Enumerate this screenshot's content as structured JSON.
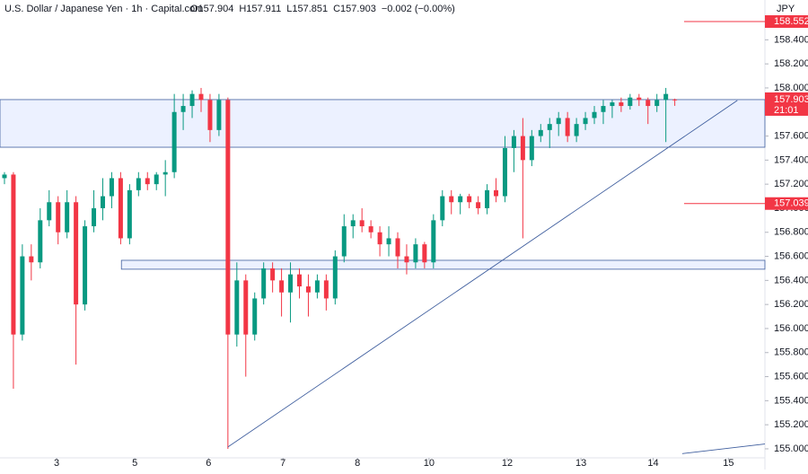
{
  "header": {
    "instrument": "U.S. Dollar / Japanese Yen · 1h · Capital.com",
    "quote": [
      "O157.904",
      "H157.911",
      "L157.851",
      "C157.903",
      "−0.002 (−0.00%)"
    ]
  },
  "chart_data": {
    "type": "candlestick",
    "currency": "JPY",
    "x": [
      -0.7,
      -0.58,
      -0.46,
      -0.34,
      -0.22,
      -0.1,
      0.02,
      0.14,
      0.26,
      0.38,
      0.5,
      0.62,
      0.74,
      0.86,
      0.98,
      1.1,
      1.22,
      1.34,
      1.46,
      1.58,
      1.7,
      1.82,
      1.94,
      2.06,
      2.18,
      2.3,
      2.42,
      2.54,
      2.66,
      2.78,
      2.9,
      3.02,
      3.14,
      3.26,
      3.38,
      3.5,
      3.62,
      3.74,
      3.86,
      3.98,
      4.1,
      4.22,
      4.34,
      4.46,
      4.58,
      4.7,
      4.82,
      4.94,
      5.06,
      5.18,
      5.3,
      5.42,
      5.54,
      5.66,
      5.78,
      5.9,
      6.02,
      6.14,
      6.26,
      6.38,
      6.5,
      6.62,
      6.74,
      6.86,
      6.98,
      7.1,
      7.22,
      7.34,
      7.46,
      7.58,
      7.7,
      7.82,
      7.94,
      8.06,
      8.18,
      8.3
    ],
    "open": [
      157.25,
      157.28,
      155.95,
      156.6,
      156.55,
      156.9,
      157.05,
      156.8,
      157.05,
      156.2,
      156.85,
      157.0,
      157.1,
      157.25,
      156.75,
      157.15,
      157.25,
      157.2,
      157.28,
      157.3,
      157.8,
      157.85,
      157.95,
      157.9,
      157.65,
      157.9,
      155.95,
      156.4,
      155.95,
      156.25,
      156.5,
      156.4,
      156.3,
      156.45,
      156.35,
      156.3,
      156.4,
      156.25,
      156.6,
      156.85,
      156.9,
      156.85,
      156.8,
      156.7,
      156.75,
      156.6,
      156.55,
      156.7,
      156.55,
      156.9,
      157.1,
      157.05,
      157.1,
      157.05,
      157.0,
      157.15,
      157.1,
      157.5,
      157.6,
      157.4,
      157.6,
      157.65,
      157.7,
      157.75,
      157.6,
      157.7,
      157.75,
      157.8,
      157.85,
      157.88,
      157.85,
      157.92,
      157.9,
      157.85,
      157.9,
      157.904
    ],
    "high": [
      157.3,
      157.3,
      156.7,
      156.7,
      157.0,
      157.15,
      157.1,
      157.15,
      157.1,
      156.9,
      157.15,
      157.25,
      157.3,
      157.3,
      157.2,
      157.3,
      157.3,
      157.3,
      157.4,
      157.95,
      157.95,
      157.98,
      158.0,
      157.95,
      157.95,
      157.92,
      156.55,
      156.45,
      156.3,
      156.55,
      156.55,
      156.5,
      156.55,
      156.5,
      156.45,
      156.45,
      156.45,
      156.65,
      156.95,
      156.95,
      157.0,
      156.9,
      156.85,
      156.85,
      156.8,
      156.7,
      156.75,
      156.72,
      156.95,
      157.15,
      157.15,
      157.12,
      157.12,
      157.1,
      157.2,
      157.25,
      157.6,
      157.65,
      157.75,
      157.65,
      157.7,
      157.75,
      157.8,
      157.8,
      157.75,
      157.8,
      157.85,
      157.9,
      157.9,
      157.92,
      157.95,
      157.95,
      157.92,
      157.95,
      158.0,
      157.911
    ],
    "low": [
      157.2,
      155.5,
      155.9,
      156.4,
      156.5,
      156.85,
      156.7,
      156.75,
      155.7,
      156.15,
      156.8,
      156.9,
      157.0,
      156.7,
      156.7,
      157.1,
      157.15,
      157.15,
      157.1,
      157.25,
      157.65,
      157.75,
      157.8,
      157.55,
      157.6,
      155.0,
      155.85,
      155.6,
      155.9,
      156.2,
      156.3,
      156.1,
      156.05,
      156.25,
      156.1,
      156.25,
      156.15,
      156.2,
      156.55,
      156.75,
      156.8,
      156.75,
      156.6,
      156.6,
      156.5,
      156.45,
      156.5,
      156.5,
      156.5,
      156.85,
      156.95,
      156.95,
      157.0,
      156.95,
      156.95,
      157.05,
      157.05,
      157.3,
      156.75,
      157.35,
      157.55,
      157.5,
      157.6,
      157.55,
      157.55,
      157.65,
      157.7,
      157.7,
      157.75,
      157.8,
      157.82,
      157.85,
      157.7,
      157.8,
      157.55,
      157.851
    ],
    "close": [
      157.28,
      155.95,
      156.6,
      156.55,
      156.9,
      157.05,
      156.8,
      157.05,
      156.2,
      156.85,
      157.0,
      157.1,
      157.25,
      156.75,
      157.15,
      157.25,
      157.2,
      157.28,
      157.3,
      157.8,
      157.85,
      157.95,
      157.9,
      157.65,
      157.9,
      155.95,
      156.4,
      155.95,
      156.25,
      156.5,
      156.4,
      156.3,
      156.45,
      156.35,
      156.3,
      156.4,
      156.25,
      156.6,
      156.85,
      156.9,
      156.85,
      156.8,
      156.7,
      156.75,
      156.6,
      156.55,
      156.7,
      156.55,
      156.9,
      157.1,
      157.05,
      157.1,
      157.05,
      157.0,
      157.15,
      157.1,
      157.5,
      157.6,
      157.4,
      157.6,
      157.65,
      157.7,
      157.75,
      157.6,
      157.7,
      157.75,
      157.8,
      157.85,
      157.88,
      157.85,
      157.92,
      157.9,
      157.85,
      157.9,
      157.95,
      157.903
    ],
    "up_color": "#089981",
    "down_color": "#f23645",
    "xlim": [
      -0.76,
      9.51
    ],
    "xticks": [
      {
        "value": 0,
        "label": "3"
      },
      {
        "value": 1.05,
        "label": "5"
      },
      {
        "value": 2.04,
        "label": "6"
      },
      {
        "value": 3.04,
        "label": "7"
      },
      {
        "value": 4.04,
        "label": "8"
      },
      {
        "value": 5.0,
        "label": "10"
      },
      {
        "value": 6.05,
        "label": "12"
      },
      {
        "value": 7.04,
        "label": "13"
      },
      {
        "value": 8.01,
        "label": "14"
      },
      {
        "value": 9.02,
        "label": "15"
      }
    ],
    "ylim": [
      154.925,
      158.731
    ],
    "yticks": [
      {
        "value": 155.0,
        "label": "155.000"
      },
      {
        "value": 155.2,
        "label": "155.200"
      },
      {
        "value": 155.4,
        "label": "155.400"
      },
      {
        "value": 155.6,
        "label": "155.600"
      },
      {
        "value": 155.8,
        "label": "155.800"
      },
      {
        "value": 156.0,
        "label": "156.000"
      },
      {
        "value": 156.2,
        "label": "156.200"
      },
      {
        "value": 156.4,
        "label": "156.400"
      },
      {
        "value": 156.6,
        "label": "156.600"
      },
      {
        "value": 156.8,
        "label": "156.800"
      },
      {
        "value": 157.0,
        "label": "157.000"
      },
      {
        "value": 157.2,
        "label": "157.200"
      },
      {
        "value": 157.4,
        "label": "157.400"
      },
      {
        "value": 157.6,
        "label": "157.600"
      },
      {
        "value": 157.8,
        "label": "157.800"
      },
      {
        "value": 158.0,
        "label": "158.000"
      },
      {
        "value": 158.2,
        "label": "158.200"
      },
      {
        "value": 158.4,
        "label": "158.400"
      }
    ],
    "zones": [
      {
        "low": 157.507,
        "high": 157.903,
        "start": -0.76
      },
      {
        "low": 156.493,
        "high": 156.567,
        "start": 0.87
      }
    ],
    "trendlines": [
      {
        "x": [
          2.3,
          9.14
        ],
        "y": [
          155.015,
          157.896
        ]
      },
      {
        "x": [
          8.4,
          9.51
        ],
        "y": [
          154.96,
          155.04
        ]
      }
    ],
    "levels": [
      158.552,
      157.039
    ],
    "level_color": "#f23645",
    "last_price": {
      "value": 157.903,
      "countdown": "21:01"
    }
  }
}
